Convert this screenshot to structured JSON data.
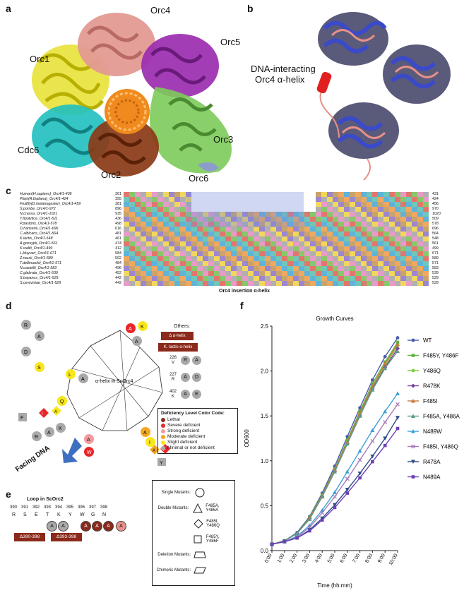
{
  "panels": {
    "a": {
      "label": "a",
      "subunits": [
        "Orc4",
        "Orc1",
        "Orc5",
        "Cdc6",
        "Orc3",
        "Orc2",
        "Orc6"
      ]
    },
    "b": {
      "label": "b",
      "annotation_line1": "DNA-interacting",
      "annotation_line2": "Orc4 α-helix"
    },
    "c": {
      "label": "c",
      "footer": "Orc4 insertion α-helix",
      "sequences": [
        {
          "name": "Human(H.sapiens)_Orc4/1-436",
          "start": "361",
          "end": "431"
        },
        {
          "name": "Plant(A.thaliana)_Orc4/1-424",
          "start": "355",
          "end": "424"
        },
        {
          "name": "Fruitfly(D.melanogaster)_Orc4/1-459",
          "start": "381",
          "end": "456"
        },
        {
          "name": "S.pombe_Orc4/1-972",
          "start": "896",
          "end": "970"
        },
        {
          "name": "N.crassa_Orc4/1-1021",
          "start": "935",
          "end": "1020"
        },
        {
          "name": "Y.lipolytica_Orc4/1-511",
          "start": "436",
          "end": "509"
        },
        {
          "name": "P.pastoris_Orc4/1-578",
          "start": "498",
          "end": "578"
        },
        {
          "name": "D.hansenii_Orc4/1-696",
          "start": "616",
          "end": "696"
        },
        {
          "name": "C.albicans_Orc4/1-564",
          "start": "481",
          "end": "564"
        },
        {
          "name": "K.lactis_Orc4/1-548",
          "start": "461",
          "end": "548"
        },
        {
          "name": "A.gossypii_Orc4/1-561",
          "start": "474",
          "end": "561"
        },
        {
          "name": "K.waltii_Orc4/1-499",
          "start": "412",
          "end": "499"
        },
        {
          "name": "L.kluyveri_Orc4/1-671",
          "start": "584",
          "end": "671"
        },
        {
          "name": "Z.rouxii_Orc4/1-589",
          "start": "502",
          "end": "589"
        },
        {
          "name": "T.delbrueckii_Orc4/1-571",
          "start": "484",
          "end": "571"
        },
        {
          "name": "N.castellii_Orc4/1-583",
          "start": "496",
          "end": "583"
        },
        {
          "name": "C.glabrata_Orc4/1-539",
          "start": "452",
          "end": "539"
        },
        {
          "name": "S.bayanus_Orc4/1-529",
          "start": "442",
          "end": "529"
        },
        {
          "name": "S.cerevisiae_Orc4/1-529",
          "start": "442",
          "end": "529"
        }
      ]
    },
    "d": {
      "label": "d",
      "center_label": "α-helix in ScOrc4",
      "facing": "Facing DNA",
      "others_title": "Others:",
      "others": [
        "Δ α-helix",
        "K. lactis α-helix"
      ],
      "others_residues": [
        {
          "num": "226",
          "res": "V",
          "subs": [
            "R",
            "A"
          ]
        },
        {
          "num": "227",
          "res": "R",
          "subs": [
            "A",
            "D"
          ]
        },
        {
          "num": "402",
          "res": "K",
          "subs": [
            "A",
            "E"
          ]
        }
      ],
      "legend_title": "Deficiency Level Color Code:",
      "legend": [
        {
          "label": "Lethal",
          "color": "#8B2A1B"
        },
        {
          "label": "Severe deficient",
          "color": "#E8262A"
        },
        {
          "label": "Strong deficient",
          "color": "#F29B9E"
        },
        {
          "label": "Moderate deficient",
          "color": "#F5A623"
        },
        {
          "label": "Slight deficient",
          "color": "#F8E71C"
        },
        {
          "label": "Minimal or not deficient",
          "color": "#A9A9A9"
        }
      ]
    },
    "e": {
      "label": "e",
      "title": "Loop in ScOrc2",
      "positions": [
        "390",
        "391",
        "392",
        "393",
        "394",
        "395",
        "396",
        "397",
        "398"
      ],
      "residues": [
        "R",
        "S",
        "E",
        "T",
        "K",
        "Y",
        "W",
        "G",
        "N"
      ],
      "deletions": [
        "Δ390-398",
        "Δ393-398"
      ],
      "mutant_key": [
        {
          "label": "Single Mutants:",
          "example": ""
        },
        {
          "label": "Double Mutants:",
          "example": "F485A, Y486A"
        },
        {
          "label": "",
          "example": "F485I, Y486Q"
        },
        {
          "label": "",
          "example": "F485Y, Y486F"
        },
        {
          "label": "Deletion Mutants:",
          "example": ""
        },
        {
          "label": "Chimeric Mutants:",
          "example": ""
        }
      ]
    },
    "f": {
      "label": "f"
    }
  },
  "chart_data": {
    "type": "line",
    "title": "Growth Curves",
    "xlabel": "Time (hh:mm)",
    "ylabel": "OD600",
    "categories": [
      "0:00",
      "1:00",
      "2:00",
      "3:00",
      "4:00",
      "5:00",
      "6:00",
      "7:00",
      "8:00",
      "9:00",
      "10:00"
    ],
    "ylim": [
      0,
      2.5
    ],
    "yticks": [
      "0.0",
      "0.5",
      "1.0",
      "1.5",
      "2.0",
      "2.5"
    ],
    "series": [
      {
        "name": "WT",
        "color": "#4A5BAE",
        "marker": "circle",
        "values": [
          0.07,
          0.11,
          0.2,
          0.38,
          0.64,
          0.94,
          1.27,
          1.59,
          1.9,
          2.16,
          2.37
        ]
      },
      {
        "name": "F485Y, Y486F",
        "color": "#62B340",
        "marker": "square",
        "values": [
          0.07,
          0.11,
          0.19,
          0.37,
          0.62,
          0.91,
          1.23,
          1.55,
          1.86,
          2.1,
          2.32
        ]
      },
      {
        "name": "Y486Q",
        "color": "#7FCB3E",
        "marker": "circle",
        "values": [
          0.07,
          0.11,
          0.19,
          0.36,
          0.6,
          0.89,
          1.2,
          1.52,
          1.82,
          2.06,
          2.28
        ]
      },
      {
        "name": "R478K",
        "color": "#7B3FA0",
        "marker": "diamond",
        "values": [
          0.07,
          0.11,
          0.19,
          0.36,
          0.6,
          0.88,
          1.19,
          1.5,
          1.8,
          2.04,
          2.25
        ]
      },
      {
        "name": "F485I",
        "color": "#C8783A",
        "marker": "triangle",
        "values": [
          0.07,
          0.11,
          0.19,
          0.36,
          0.61,
          0.9,
          1.21,
          1.53,
          1.83,
          2.08,
          2.3
        ]
      },
      {
        "name": "F485A, Y486A",
        "color": "#5E9B8A",
        "marker": "triangle",
        "values": [
          0.07,
          0.11,
          0.19,
          0.35,
          0.6,
          0.88,
          1.19,
          1.5,
          1.79,
          2.03,
          2.22
        ]
      },
      {
        "name": "N489W",
        "color": "#3D9FD8",
        "marker": "triangle",
        "values": [
          0.07,
          0.1,
          0.16,
          0.28,
          0.45,
          0.65,
          0.88,
          1.11,
          1.34,
          1.55,
          1.75
        ]
      },
      {
        "name": "F485I, Y486Q",
        "color": "#A57CB8",
        "marker": "cross",
        "values": [
          0.07,
          0.1,
          0.15,
          0.26,
          0.42,
          0.6,
          0.8,
          1.01,
          1.22,
          1.43,
          1.63
        ]
      },
      {
        "name": "R478A",
        "color": "#2E4A85",
        "marker": "triangle-down",
        "values": [
          0.07,
          0.1,
          0.14,
          0.23,
          0.36,
          0.51,
          0.68,
          0.86,
          1.05,
          1.25,
          1.48
        ]
      },
      {
        "name": "N489A",
        "color": "#6B3FB5",
        "marker": "square",
        "values": [
          0.07,
          0.1,
          0.14,
          0.22,
          0.34,
          0.48,
          0.64,
          0.81,
          0.99,
          1.17,
          1.36
        ]
      }
    ]
  }
}
